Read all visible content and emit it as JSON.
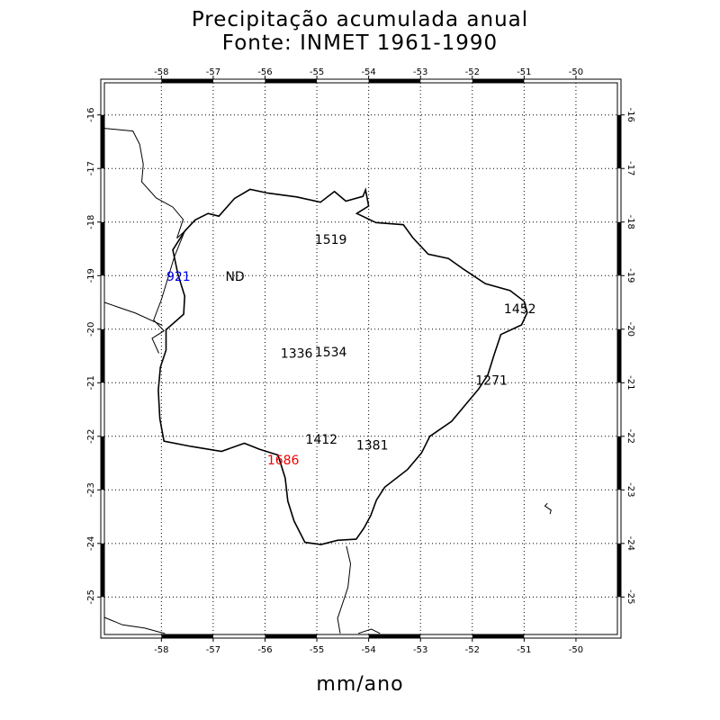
{
  "title": {
    "line1": "Precipitação acumulada anual",
    "line2": "Fonte: INMET 1961-1990"
  },
  "units_label": "mm/ano",
  "map": {
    "lon_range": [
      -59.1,
      -49.2
    ],
    "lat_range": [
      -25.7,
      -15.4
    ],
    "lon_ticks": [
      -58,
      -57,
      -56,
      -55,
      -54,
      -53,
      -52,
      -51,
      -50
    ],
    "lat_ticks": [
      -16,
      -17,
      -18,
      -19,
      -20,
      -21,
      -22,
      -23,
      -24,
      -25
    ],
    "lon_labels": [
      "-58",
      "-57",
      "-56",
      "-55",
      "-54",
      "-53",
      "-52",
      "-51",
      "-50"
    ],
    "lat_labels": [
      "-16",
      "-17",
      "-18",
      "-19",
      "-20",
      "-21",
      "-22",
      "-23",
      "-24",
      "-25"
    ],
    "grid": true,
    "grid_style": "dotted",
    "border_color": "#000000"
  },
  "stations": [
    {
      "label": "1519",
      "lon": -54.73,
      "lat": -18.32,
      "color": "#000000"
    },
    {
      "label": "921",
      "lon": -57.67,
      "lat": -19.01,
      "color": "#0000ee"
    },
    {
      "label": "ND",
      "lon": -56.58,
      "lat": -19.01,
      "color": "#000000"
    },
    {
      "label": "1452",
      "lon": -51.08,
      "lat": -19.62,
      "color": "#000000"
    },
    {
      "label": "1336",
      "lon": -55.39,
      "lat": -20.45,
      "color": "#000000"
    },
    {
      "label": "1534",
      "lon": -54.73,
      "lat": -20.42,
      "color": "#000000"
    },
    {
      "label": "1271",
      "lon": -51.63,
      "lat": -20.95,
      "color": "#000000"
    },
    {
      "label": "1412",
      "lon": -54.91,
      "lat": -22.05,
      "color": "#000000"
    },
    {
      "label": "1381",
      "lon": -53.93,
      "lat": -22.16,
      "color": "#000000"
    },
    {
      "label": "1686",
      "lon": -55.65,
      "lat": -22.44,
      "color": "#ee0000"
    }
  ],
  "outline": [
    [
      -56.89,
      -17.89
    ],
    [
      -56.59,
      -17.56
    ],
    [
      -56.29,
      -17.39
    ],
    [
      -55.94,
      -17.46
    ],
    [
      -55.39,
      -17.53
    ],
    [
      -54.93,
      -17.63
    ],
    [
      -54.66,
      -17.43
    ],
    [
      -54.44,
      -17.61
    ],
    [
      -54.11,
      -17.52
    ],
    [
      -54.06,
      -17.4
    ],
    [
      -54.0,
      -17.7
    ],
    [
      -54.23,
      -17.84
    ],
    [
      -53.86,
      -18.01
    ],
    [
      -53.33,
      -18.05
    ],
    [
      -53.15,
      -18.29
    ],
    [
      -52.85,
      -18.6
    ],
    [
      -52.46,
      -18.68
    ],
    [
      -52.17,
      -18.88
    ],
    [
      -51.75,
      -19.15
    ],
    [
      -51.27,
      -19.28
    ],
    [
      -51.0,
      -19.48
    ],
    [
      -50.94,
      -19.69
    ],
    [
      -51.05,
      -19.92
    ],
    [
      -51.45,
      -20.1
    ],
    [
      -51.58,
      -20.48
    ],
    [
      -51.7,
      -20.85
    ],
    [
      -51.88,
      -21.12
    ],
    [
      -52.15,
      -21.43
    ],
    [
      -52.4,
      -21.72
    ],
    [
      -52.82,
      -22.0
    ],
    [
      -52.98,
      -22.31
    ],
    [
      -53.25,
      -22.62
    ],
    [
      -53.69,
      -22.95
    ],
    [
      -53.85,
      -23.19
    ],
    [
      -53.96,
      -23.48
    ],
    [
      -54.09,
      -23.71
    ],
    [
      -54.24,
      -23.92
    ],
    [
      -54.6,
      -23.94
    ],
    [
      -54.92,
      -24.02
    ],
    [
      -55.23,
      -23.98
    ],
    [
      -55.44,
      -23.58
    ],
    [
      -55.56,
      -23.21
    ],
    [
      -55.61,
      -22.78
    ],
    [
      -55.75,
      -22.35
    ],
    [
      -56.11,
      -22.24
    ],
    [
      -56.4,
      -22.13
    ],
    [
      -56.84,
      -22.28
    ],
    [
      -57.42,
      -22.19
    ],
    [
      -57.95,
      -22.09
    ],
    [
      -58.03,
      -21.67
    ],
    [
      -58.06,
      -21.14
    ],
    [
      -58.02,
      -20.71
    ],
    [
      -57.91,
      -20.39
    ],
    [
      -57.91,
      -20.01
    ],
    [
      -57.57,
      -19.72
    ],
    [
      -57.55,
      -19.38
    ],
    [
      -57.68,
      -18.98
    ],
    [
      -57.78,
      -18.52
    ],
    [
      -57.55,
      -18.17
    ],
    [
      -57.35,
      -17.96
    ],
    [
      -57.1,
      -17.84
    ],
    [
      -56.89,
      -17.89
    ]
  ],
  "background_lines": [
    [
      [
        -59.1,
        -16.25
      ],
      [
        -58.55,
        -16.3
      ],
      [
        -58.42,
        -16.55
      ],
      [
        -58.35,
        -16.92
      ],
      [
        -58.38,
        -17.25
      ],
      [
        -58.1,
        -17.55
      ],
      [
        -57.78,
        -17.72
      ],
      [
        -57.58,
        -17.95
      ],
      [
        -57.7,
        -18.3
      ]
    ],
    [
      [
        -57.7,
        -18.3
      ],
      [
        -57.55,
        -18.17
      ],
      [
        -57.75,
        -18.65
      ],
      [
        -58.0,
        -19.45
      ],
      [
        -58.15,
        -19.83
      ],
      [
        -57.95,
        -20.03
      ],
      [
        -58.18,
        -20.17
      ],
      [
        -58.05,
        -20.45
      ]
    ],
    [
      [
        -59.1,
        -19.5
      ],
      [
        -58.5,
        -19.7
      ],
      [
        -57.98,
        -19.93
      ]
    ],
    [
      [
        -59.1,
        -25.38
      ],
      [
        -58.75,
        -25.52
      ],
      [
        -58.32,
        -25.58
      ],
      [
        -58.06,
        -25.65
      ],
      [
        -57.93,
        -25.68
      ]
    ],
    [
      [
        -54.43,
        -24.05
      ],
      [
        -54.35,
        -24.38
      ],
      [
        -54.4,
        -24.82
      ],
      [
        -54.6,
        -25.4
      ],
      [
        -54.55,
        -25.68
      ]
    ],
    [
      [
        -54.2,
        -25.68
      ],
      [
        -53.95,
        -25.6
      ],
      [
        -53.78,
        -25.68
      ]
    ],
    [
      [
        -50.55,
        -23.25
      ],
      [
        -50.6,
        -23.3
      ],
      [
        -50.48,
        -23.38
      ],
      [
        -50.5,
        -23.45
      ]
    ]
  ]
}
